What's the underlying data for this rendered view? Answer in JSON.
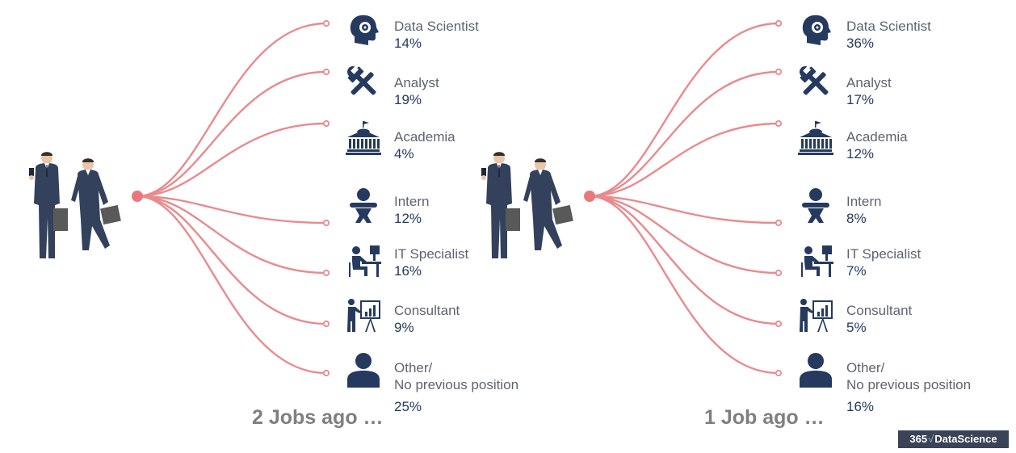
{
  "panels": [
    {
      "caption": "2 Jobs ago …",
      "items": [
        {
          "icon": "head-gear-icon",
          "name": "Data Scientist",
          "pct": "14%"
        },
        {
          "icon": "hammer-wrench-icon",
          "name": "Analyst",
          "pct": "19%"
        },
        {
          "icon": "university-building-icon",
          "name": "Academia",
          "pct": "4%"
        },
        {
          "icon": "baby-icon",
          "name": "Intern",
          "pct": "12%"
        },
        {
          "icon": "person-at-computer-icon",
          "name": "IT Specialist",
          "pct": "16%"
        },
        {
          "icon": "presenter-chart-icon",
          "name": "Consultant",
          "pct": "9%"
        },
        {
          "icon": "person-icon",
          "name": "Other/",
          "name2": "No previous position",
          "pct": "25%"
        }
      ]
    },
    {
      "caption": "1 Job ago …",
      "items": [
        {
          "icon": "head-gear-icon",
          "name": "Data Scientist",
          "pct": "36%"
        },
        {
          "icon": "hammer-wrench-icon",
          "name": "Analyst",
          "pct": "17%"
        },
        {
          "icon": "university-building-icon",
          "name": "Academia",
          "pct": "12%"
        },
        {
          "icon": "baby-icon",
          "name": "Intern",
          "pct": "8%"
        },
        {
          "icon": "person-at-computer-icon",
          "name": "IT Specialist",
          "pct": "7%"
        },
        {
          "icon": "presenter-chart-icon",
          "name": "Consultant",
          "pct": "5%"
        },
        {
          "icon": "person-icon",
          "name": "Other/",
          "name2": "No previous position",
          "pct": "16%"
        }
      ]
    }
  ],
  "logo": {
    "left": "365",
    "right": "DataScience"
  },
  "colors": {
    "line": "#e98a8e",
    "hub": "#e9787c",
    "icon": "#253a5e",
    "pct": "#253a5e",
    "label": "#5d6470",
    "caption": "#7f7f7f",
    "suit": "#33415c",
    "skin": "#e8c6a8"
  }
}
